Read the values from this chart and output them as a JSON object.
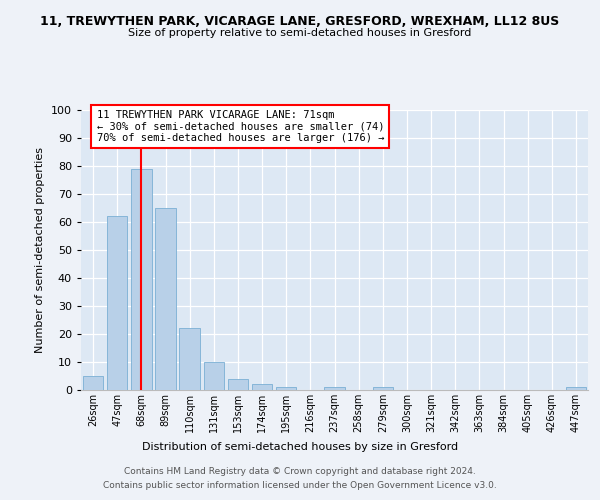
{
  "title1": "11, TREWYTHEN PARK, VICARAGE LANE, GRESFORD, WREXHAM, LL12 8US",
  "title2": "Size of property relative to semi-detached houses in Gresford",
  "xlabel": "Distribution of semi-detached houses by size in Gresford",
  "ylabel": "Number of semi-detached properties",
  "categories": [
    "26sqm",
    "47sqm",
    "68sqm",
    "89sqm",
    "110sqm",
    "131sqm",
    "153sqm",
    "174sqm",
    "195sqm",
    "216sqm",
    "237sqm",
    "258sqm",
    "279sqm",
    "300sqm",
    "321sqm",
    "342sqm",
    "363sqm",
    "384sqm",
    "405sqm",
    "426sqm",
    "447sqm"
  ],
  "values": [
    5,
    62,
    79,
    65,
    22,
    10,
    4,
    2,
    1,
    0,
    1,
    0,
    1,
    0,
    0,
    0,
    0,
    0,
    0,
    0,
    1
  ],
  "bar_color": "#b8d0e8",
  "bar_edge_color": "#7aafd4",
  "ylim": [
    0,
    100
  ],
  "yticks": [
    0,
    10,
    20,
    30,
    40,
    50,
    60,
    70,
    80,
    90,
    100
  ],
  "property_line_x": 2.0,
  "property_sqm": 71,
  "pct_smaller": 30,
  "count_smaller": 74,
  "pct_larger": 70,
  "count_larger": 176,
  "annotation_text_line1": "11 TREWYTHEN PARK VICARAGE LANE: 71sqm",
  "annotation_text_line2": "← 30% of semi-detached houses are smaller (74)",
  "annotation_text_line3": "70% of semi-detached houses are larger (176) →",
  "footer1": "Contains HM Land Registry data © Crown copyright and database right 2024.",
  "footer2": "Contains public sector information licensed under the Open Government Licence v3.0.",
  "bg_color": "#eef2f8",
  "plot_bg_color": "#dde8f4"
}
